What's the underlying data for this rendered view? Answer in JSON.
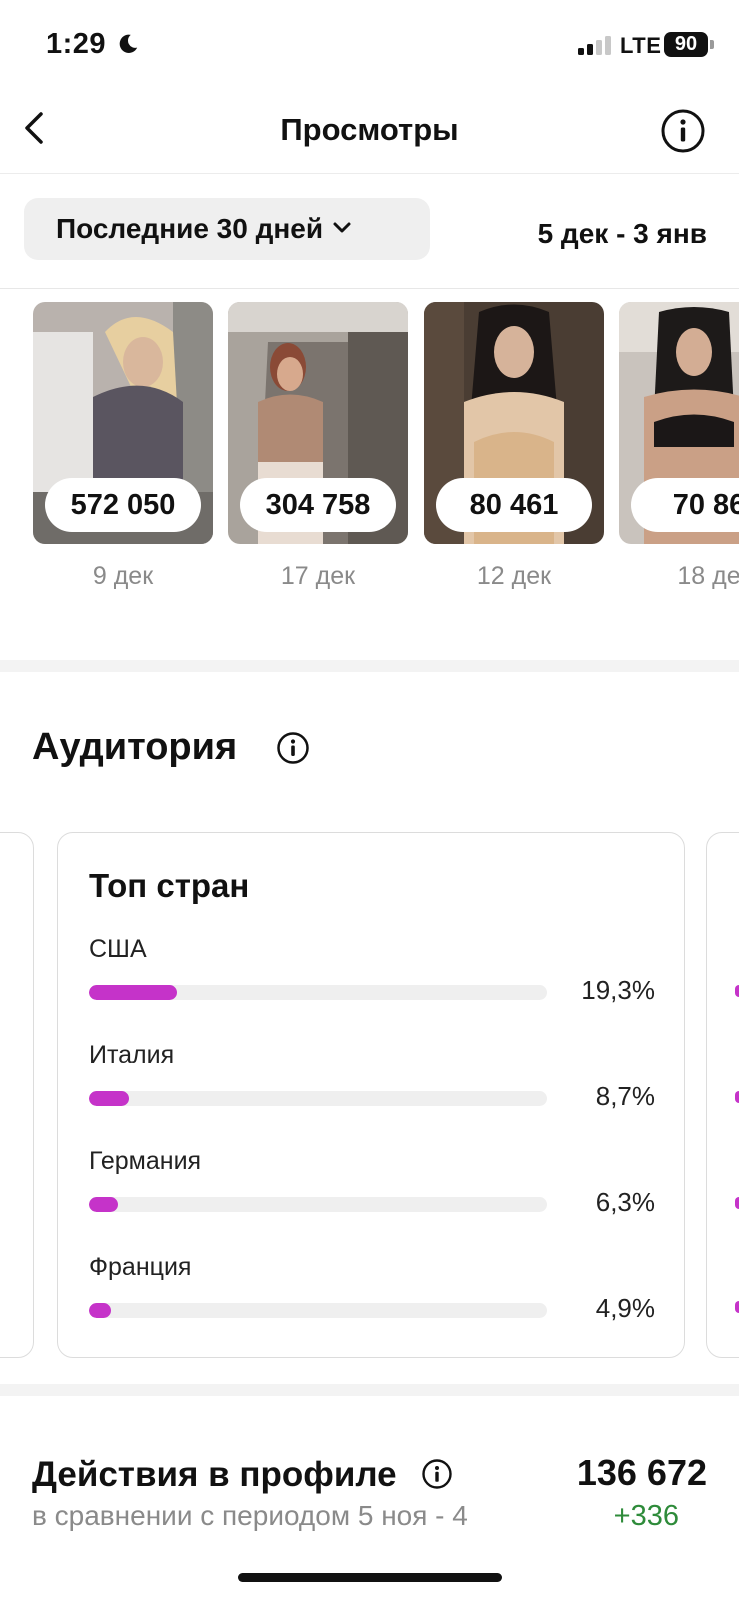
{
  "status_bar": {
    "time": "1:29",
    "network": "LTE",
    "battery": "90"
  },
  "header": {
    "title": "Просмотры"
  },
  "filter": {
    "period_label": "Последние 30 дней",
    "date_range": "5 дек - 3 янв"
  },
  "posts": [
    {
      "views": "572 050",
      "date": "9 дек"
    },
    {
      "views": "304 758",
      "date": "17 дек"
    },
    {
      "views": "80 461",
      "date": "12 дек"
    },
    {
      "views": "70 86",
      "date": "18 де"
    }
  ],
  "audience": {
    "title": "Аудитория",
    "card": {
      "title": "Топ стран",
      "countries": [
        {
          "name": "США",
          "percent": "19,3%",
          "value": 19.3
        },
        {
          "name": "Италия",
          "percent": "8,7%",
          "value": 8.7
        },
        {
          "name": "Германия",
          "percent": "6,3%",
          "value": 6.3
        },
        {
          "name": "Франция",
          "percent": "4,9%",
          "value": 4.9
        }
      ]
    }
  },
  "profile_actions": {
    "title": "Действия в профиле",
    "comparison": "в сравнении с периодом 5 ноя - 4",
    "value": "136 672",
    "delta": "+336"
  },
  "colors": {
    "bar": "#c533c9",
    "delta": "#2e8b3a",
    "muted": "#8a8a8a"
  },
  "icons": [
    "moon-icon",
    "chevron-left-icon",
    "info-icon",
    "chevron-down-icon"
  ]
}
